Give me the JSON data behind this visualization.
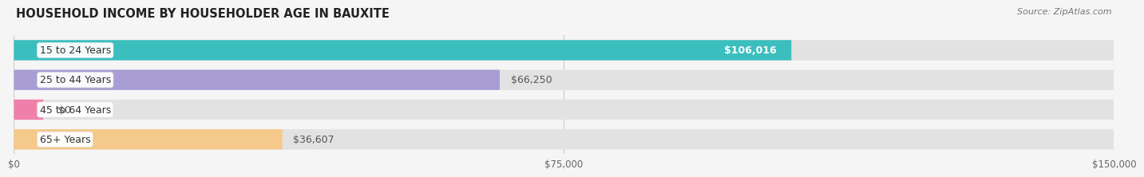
{
  "title": "HOUSEHOLD INCOME BY HOUSEHOLDER AGE IN BAUXITE",
  "source": "Source: ZipAtlas.com",
  "categories": [
    "15 to 24 Years",
    "25 to 44 Years",
    "45 to 64 Years",
    "65+ Years"
  ],
  "values": [
    106016,
    66250,
    0,
    36607
  ],
  "bar_colors": [
    "#3abebe",
    "#a89ed4",
    "#f07faa",
    "#f5c98a"
  ],
  "value_labels": [
    "$106,016",
    "$66,250",
    "$0",
    "$36,607"
  ],
  "value_label_inside": [
    true,
    false,
    false,
    false
  ],
  "value_label_color_inside": "#ffffff",
  "value_label_color_outside": "#555555",
  "xlim": [
    0,
    150000
  ],
  "xticks": [
    0,
    75000,
    150000
  ],
  "xtick_labels": [
    "$0",
    "$75,000",
    "$150,000"
  ],
  "background_color": "#f5f5f5",
  "bar_bg_color": "#e2e2e2",
  "title_fontsize": 10.5,
  "source_fontsize": 8,
  "bar_height": 0.68,
  "bar_spacing": 1.0,
  "label_fontsize": 9,
  "value_fontsize": 9
}
